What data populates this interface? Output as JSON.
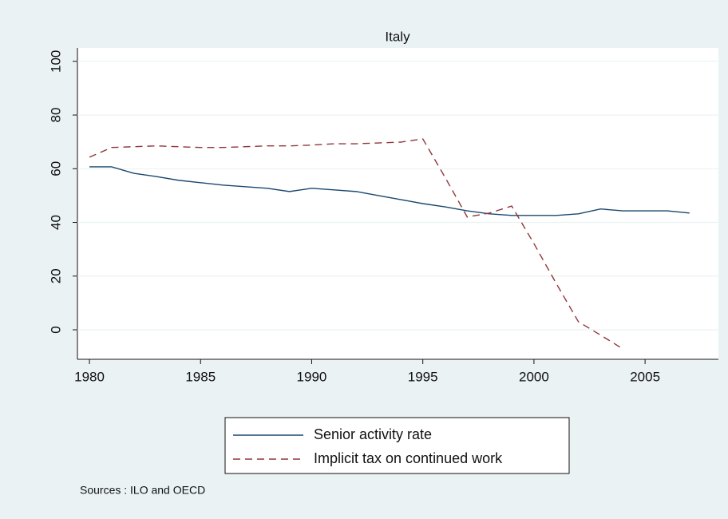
{
  "chart_data": {
    "type": "line",
    "title": "Italy",
    "x": [
      1980,
      1981,
      1982,
      1983,
      1984,
      1985,
      1986,
      1987,
      1988,
      1989,
      1990,
      1991,
      1992,
      1993,
      1994,
      1995,
      1996,
      1997,
      1998,
      1999,
      2000,
      2001,
      2002,
      2003,
      2004,
      2005,
      2006,
      2007
    ],
    "series": [
      {
        "name": "Senior activity rate",
        "color": "#1a476f",
        "dash": false,
        "values": [
          60.7,
          60.7,
          58.3,
          57.1,
          55.7,
          54.8,
          53.9,
          53.3,
          52.7,
          51.5,
          52.7,
          52.1,
          51.5,
          50,
          48.5,
          47,
          45.8,
          44.3,
          43.2,
          42.6,
          42.6,
          42.6,
          43.2,
          45,
          44.3,
          44.3,
          44.3,
          43.5
        ]
      },
      {
        "name": "Implicit tax on continued work",
        "color": "#90353b",
        "dash": true,
        "values": [
          64.3,
          67.9,
          68.2,
          68.5,
          68.2,
          67.9,
          67.9,
          68.2,
          68.5,
          68.5,
          68.8,
          69.3,
          69.3,
          69.6,
          69.9,
          71.1,
          56.8,
          42,
          43.5,
          46.1,
          32.1,
          17.3,
          3,
          -2,
          -7.1,
          null,
          null,
          null
        ]
      }
    ],
    "xlim": [
      1979.46,
      2008.3
    ],
    "xticks": [
      1980,
      1985,
      1990,
      1995,
      2000,
      2005
    ],
    "ylim": [
      -11,
      105
    ],
    "yticks": [
      0,
      20,
      40,
      60,
      80,
      100
    ],
    "grid": true,
    "legend": "bottom",
    "note": "Sources : ILO and OECD"
  }
}
